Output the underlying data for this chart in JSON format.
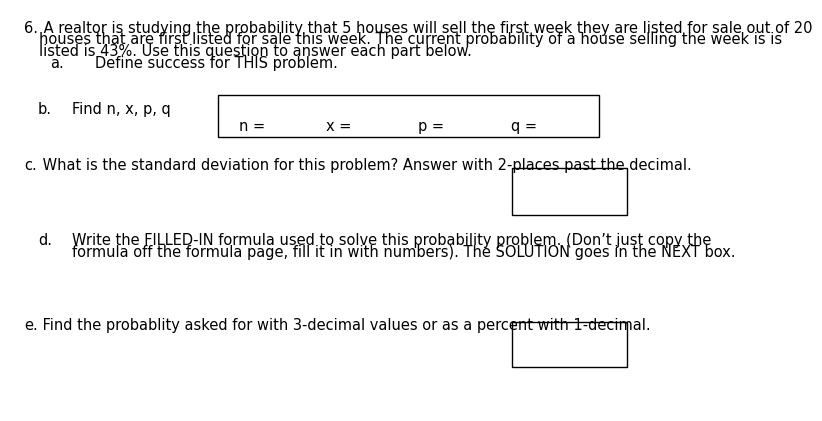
{
  "bg_color": "#ffffff",
  "text_color": "#000000",
  "title_number": "6.",
  "title_line1": " A realtor is studying the probability that 5 houses will sell the first week they are listed for sale out of 20",
  "title_line2": "houses that are first listed for sale this week. The current probability of a house selling the week is is",
  "title_line3": "listed is 43%. Use this question to answer each part below.",
  "part_a_label": "a.",
  "part_a_text": "Define success for THIS problem.",
  "part_b_label": "b.",
  "part_b_text": "Find n, x, p, q",
  "box_b_labels": [
    "n =",
    "x =",
    "p =",
    "q ="
  ],
  "part_c_label": "c.",
  "part_c_text": " What is the standard deviation for this problem? Answer with 2-places past the decimal.",
  "part_d_label": "d.",
  "part_d_line1": "Write the FILLED-IN formula used to solve this probability problem. (Don’t just copy the",
  "part_d_line2": "formula off the formula page, fill it in with numbers). The SOLUTION goes in the NEXT box.",
  "part_e_label": "e.",
  "part_e_text": " Find the probablity asked for with 3-decimal values or as a percent with 1-decimal.",
  "font_size_body": 10.5,
  "font_family": "DejaVu Sans"
}
